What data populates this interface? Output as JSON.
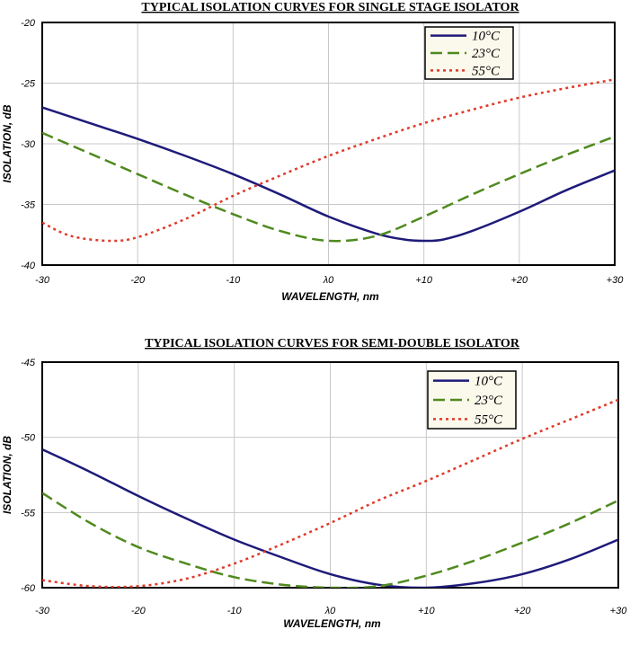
{
  "chart_data": [
    {
      "type": "line",
      "title": "TYPICAL ISOLATION CURVES FOR SINGLE STAGE ISOLATOR",
      "xlabel": "WAVELENGTH, nm",
      "ylabel": "ISOLATION, dB",
      "xlim": [
        -30,
        30
      ],
      "ylim": [
        -40,
        -20
      ],
      "xticks": [
        -30,
        -20,
        -10,
        0,
        10,
        20,
        30
      ],
      "xtick_labels": [
        "-30",
        "-20",
        "-10",
        "λ0",
        "+10",
        "+20",
        "+30"
      ],
      "yticks": [
        -40,
        -35,
        -30,
        -25,
        -20
      ],
      "ytick_labels": [
        "-40",
        "-35",
        "-30",
        "-25",
        "-20"
      ],
      "grid": true,
      "legend_position": "top-right",
      "series": [
        {
          "name": "10°C",
          "color": "#1f1a7a",
          "dash": "solid",
          "x": [
            -30,
            -25,
            -20,
            -15,
            -10,
            -5,
            0,
            5,
            8,
            10,
            12,
            15,
            20,
            25,
            30
          ],
          "y": [
            -27.0,
            -28.3,
            -29.6,
            -31.0,
            -32.5,
            -34.2,
            -36.0,
            -37.4,
            -37.9,
            -38.0,
            -37.9,
            -37.2,
            -35.6,
            -33.8,
            -32.2
          ]
        },
        {
          "name": "23°C",
          "color": "#4f8a1e",
          "dash": "dashed",
          "x": [
            -30,
            -25,
            -20,
            -15,
            -10,
            -5,
            0,
            5,
            10,
            15,
            20,
            25,
            30
          ],
          "y": [
            -29.1,
            -30.8,
            -32.5,
            -34.2,
            -35.8,
            -37.2,
            -38.0,
            -37.6,
            -36.0,
            -34.2,
            -32.5,
            -30.9,
            -29.4
          ]
        },
        {
          "name": "55°C",
          "color": "#e03a2a",
          "dash": "dotted",
          "x": [
            -30,
            -27,
            -23,
            -20,
            -15,
            -10,
            -5,
            0,
            5,
            10,
            15,
            20,
            25,
            30
          ],
          "y": [
            -36.5,
            -37.6,
            -38.0,
            -37.7,
            -36.2,
            -34.3,
            -32.6,
            -31.0,
            -29.6,
            -28.3,
            -27.2,
            -26.2,
            -25.4,
            -24.7
          ]
        }
      ]
    },
    {
      "type": "line",
      "title": "TYPICAL ISOLATION CURVES FOR SEMI-DOUBLE ISOLATOR",
      "xlabel": "WAVELENGTH, nm",
      "ylabel": "ISOLATION, dB",
      "xlim": [
        -30,
        30
      ],
      "ylim": [
        -60,
        -45
      ],
      "xticks": [
        -30,
        -20,
        -10,
        0,
        10,
        20,
        30
      ],
      "xtick_labels": [
        "-30",
        "-20",
        "-10",
        "λ0",
        "+10",
        "+20",
        "+30"
      ],
      "yticks": [
        -60,
        -55,
        -50,
        -45
      ],
      "ytick_labels": [
        "-60",
        "-55",
        "-50",
        "-45"
      ],
      "grid": true,
      "legend_position": "top-right",
      "series": [
        {
          "name": "10°C",
          "color": "#1f1a7a",
          "dash": "solid",
          "x": [
            -30,
            -25,
            -20,
            -15,
            -10,
            -5,
            0,
            5,
            10,
            15,
            20,
            25,
            30
          ],
          "y": [
            -50.8,
            -52.3,
            -53.9,
            -55.4,
            -56.8,
            -58.0,
            -59.1,
            -59.8,
            -60.0,
            -59.7,
            -59.1,
            -58.1,
            -56.8
          ]
        },
        {
          "name": "23°C",
          "color": "#4f8a1e",
          "dash": "dashed",
          "x": [
            -30,
            -25,
            -20,
            -15,
            -10,
            -5,
            0,
            5,
            10,
            15,
            20,
            25,
            30
          ],
          "y": [
            -53.7,
            -55.7,
            -57.3,
            -58.4,
            -59.3,
            -59.8,
            -60.0,
            -59.9,
            -59.2,
            -58.2,
            -57.0,
            -55.7,
            -54.2
          ]
        },
        {
          "name": "55°C",
          "color": "#e03a2a",
          "dash": "dotted",
          "x": [
            -30,
            -25,
            -20,
            -15,
            -10,
            -5,
            0,
            5,
            10,
            15,
            20,
            25,
            30
          ],
          "y": [
            -59.5,
            -59.9,
            -59.9,
            -59.4,
            -58.4,
            -57.1,
            -55.7,
            -54.2,
            -52.9,
            -51.5,
            -50.1,
            -48.8,
            -47.5
          ]
        }
      ]
    }
  ]
}
